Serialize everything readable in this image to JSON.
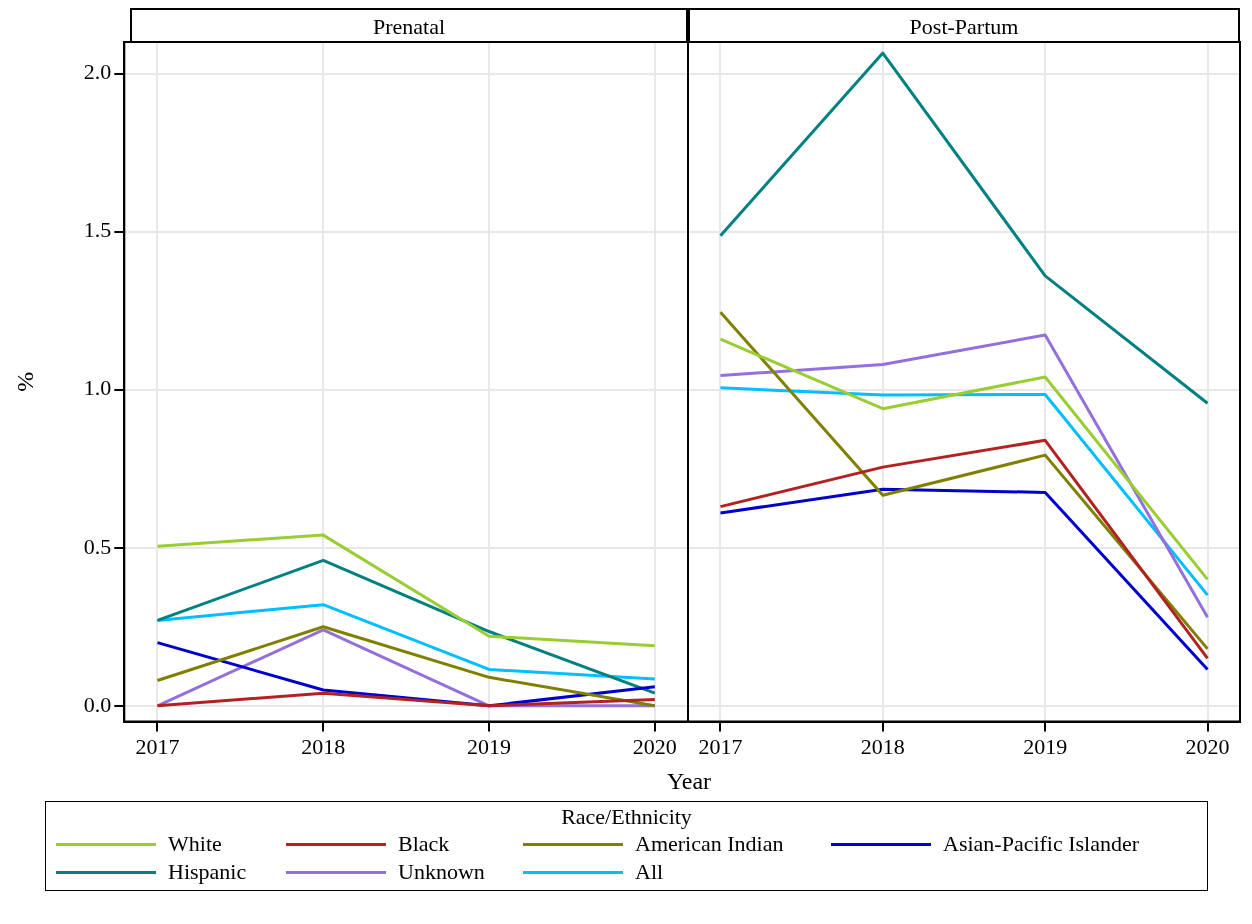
{
  "chart_data": [
    {
      "type": "line",
      "title": "Prenatal",
      "ylabel": "%",
      "xlabel": "Year",
      "legend_title": "Race/Ethnicity",
      "legend": "bottom",
      "grid": true,
      "line_style": "solid",
      "marker": "none",
      "x": [
        2017,
        2018,
        2019,
        2020
      ],
      "xlim": [
        2016.8,
        2020.2
      ],
      "xticks": [
        2017,
        2018,
        2019,
        2020
      ],
      "ylim": [
        -0.05,
        2.1
      ],
      "yticks": [
        {
          "value": 0,
          "label": "0.0"
        },
        {
          "value": 0.5,
          "label": "0.5"
        },
        {
          "value": 1,
          "label": "1.0"
        },
        {
          "value": 1.5,
          "label": "1.5"
        },
        {
          "value": 2,
          "label": "2.0"
        }
      ],
      "series": [
        {
          "name": "White",
          "color": "#9acd32",
          "values": [
            0.505,
            0.54,
            0.22,
            0.19
          ]
        },
        {
          "name": "Black",
          "color": "#b22222",
          "values": [
            0,
            0.04,
            0,
            0.02
          ]
        },
        {
          "name": "American Indian",
          "color": "#808000",
          "values": [
            0.08,
            0.25,
            0.09,
            0
          ]
        },
        {
          "name": "Asian-Pacific Islander",
          "color": "#0000cd",
          "values": [
            0.2,
            0.05,
            0,
            0.06
          ]
        },
        {
          "name": "Hispanic",
          "color": "#008080",
          "values": [
            0.27,
            0.46,
            0.235,
            0.04
          ]
        },
        {
          "name": "Unknown",
          "color": "#9370db",
          "values": [
            0,
            0.24,
            0,
            0
          ]
        },
        {
          "name": "All",
          "color": "#00bfff",
          "values": [
            0.27,
            0.32,
            0.115,
            0.085
          ]
        }
      ]
    },
    {
      "type": "line",
      "title": "Post-Partum",
      "grid": true,
      "line_style": "solid",
      "marker": "none",
      "tick_labels": "x",
      "x": [
        2017,
        2018,
        2019,
        2020
      ],
      "xlim": [
        2016.8,
        2020.2
      ],
      "xticks": [
        2017,
        2018,
        2019,
        2020
      ],
      "ylim": [
        -0.05,
        2.1
      ],
      "yticks": [
        0,
        0.5,
        1,
        1.5,
        2
      ],
      "series": [
        {
          "color": "#9acd32",
          "values": [
            1.16,
            0.94,
            1.04,
            0.4
          ]
        },
        {
          "color": "#b22222",
          "values": [
            0.63,
            0.755,
            0.84,
            0.15
          ]
        },
        {
          "color": "#808000",
          "values": [
            1.245,
            0.666,
            0.793,
            0.18
          ]
        },
        {
          "color": "#0000cd",
          "values": [
            0.61,
            0.685,
            0.675,
            0.115
          ]
        },
        {
          "color": "#008080",
          "values": [
            1.487,
            2.065,
            1.36,
            0.957
          ]
        },
        {
          "color": "#9370db",
          "values": [
            1.045,
            1.08,
            1.173,
            0.28
          ]
        },
        {
          "color": "#00bfff",
          "values": [
            1.006,
            0.983,
            0.985,
            0.35
          ]
        }
      ]
    }
  ]
}
